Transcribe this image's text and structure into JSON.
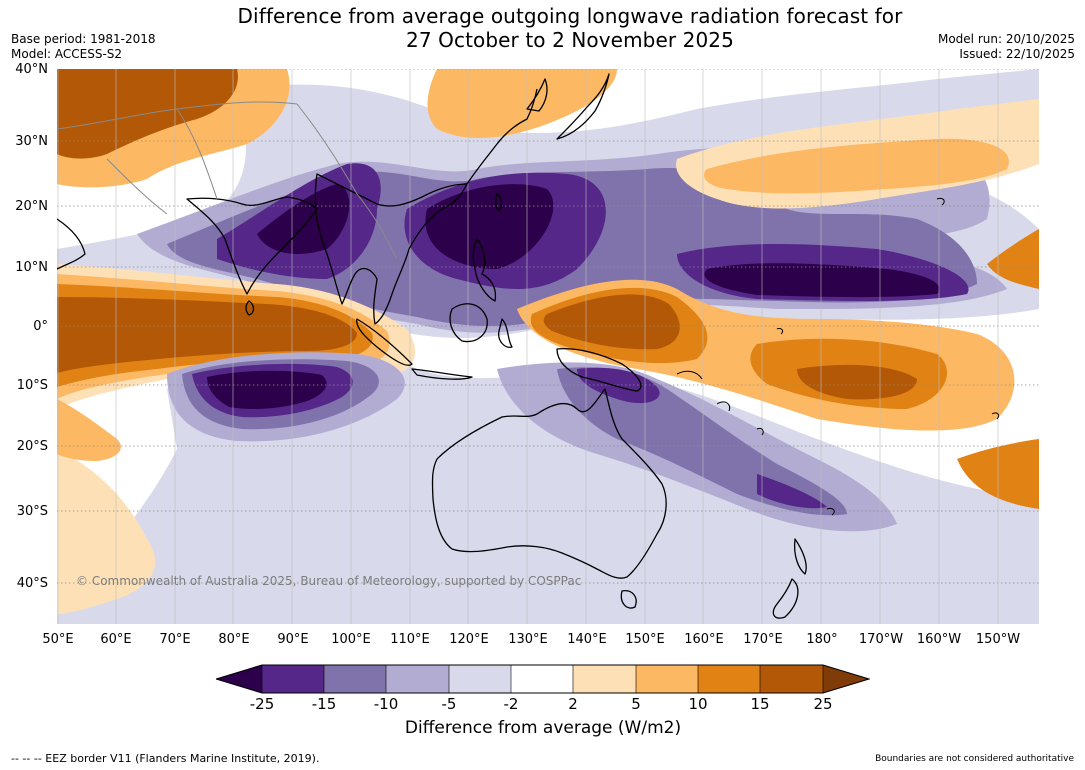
{
  "title": {
    "line1": "Difference from average outgoing longwave radiation forecast for",
    "line2": "27 October to 2 November 2025"
  },
  "meta": {
    "base_period": "Base period: 1981-2018",
    "model": "Model: ACCESS-S2",
    "model_run": "Model run: 20/10/2025",
    "issued": "Issued: 22/10/2025"
  },
  "axes": {
    "lat_labels": [
      "40°N",
      "30°N",
      "20°N",
      "10°N",
      "0°",
      "10°S",
      "20°S",
      "30°S",
      "40°S"
    ],
    "lon_labels": [
      "50°E",
      "60°E",
      "70°E",
      "80°E",
      "90°E",
      "100°E",
      "110°E",
      "120°E",
      "130°E",
      "140°E",
      "150°E",
      "160°E",
      "170°E",
      "180°",
      "170°W",
      "160°W",
      "150°W"
    ]
  },
  "map": {
    "copyright": "© Commonwealth of Australia 2025, Bureau of Meteorology, supported by COSPPac",
    "anomaly_regions": [
      "strong negative: Bay of Bengal, South China Sea, Philippines, western Pacific 10°N, south Indian Ocean 10°S",
      "strong positive: equatorial Indian Ocean, western equatorial Pacific, South Pacific 10°S"
    ]
  },
  "colorbar": {
    "label": "Difference from average (W/m2)",
    "ticks": [
      "-25",
      "-15",
      "-10",
      "-5",
      "-2",
      "2",
      "5",
      "10",
      "15",
      "25"
    ],
    "colors": {
      "under": "#2d004b",
      "n25_15": "#542788",
      "n15_10": "#8073ac",
      "n10_5": "#b2abd2",
      "n5_2": "#d8daeb",
      "n2_2": "#ffffff",
      "p2_5": "#fee0b6",
      "p5_10": "#fdb863",
      "p10_15": "#e08214",
      "p15_25": "#b35806",
      "over": "#7f3b08"
    }
  },
  "footer": {
    "eez_note": "--  --  -- EEZ border V11 (Flanders Marine Institute, 2019).",
    "boundaries_note": "Boundaries are not considered authoritative"
  }
}
